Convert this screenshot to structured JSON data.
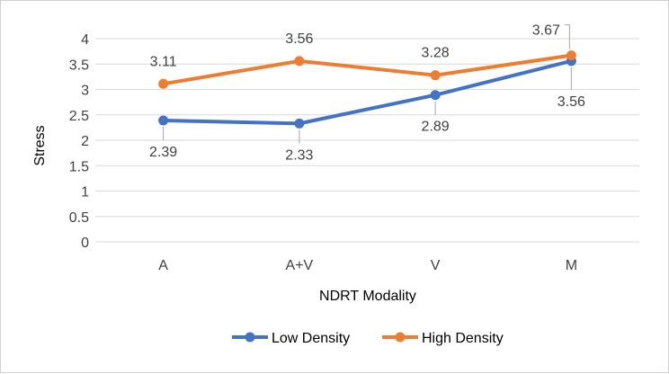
{
  "chart_data": {
    "type": "line",
    "title": "",
    "xlabel": "NDRT Modality",
    "ylabel": "Stress",
    "categories": [
      "A",
      "A+V",
      "V",
      "M"
    ],
    "ylim": [
      0,
      4
    ],
    "yticks": [
      0,
      0.5,
      1,
      1.5,
      2,
      2.5,
      3,
      3.5,
      4
    ],
    "ytick_labels": [
      "0",
      "0.5",
      "1",
      "1.5",
      "2",
      "2.5",
      "3",
      "3.5",
      "4"
    ],
    "grid": true,
    "legend_position": "bottom",
    "series": [
      {
        "name": "Low Density",
        "color": "#4472C4",
        "values": [
          2.39,
          2.33,
          2.89,
          3.56
        ],
        "labels": [
          "2.39",
          "2.33",
          "2.89",
          "3.56"
        ]
      },
      {
        "name": "High Density",
        "color": "#ED7D31",
        "values": [
          3.11,
          3.56,
          3.28,
          3.67
        ],
        "labels": [
          "3.11",
          "3.56",
          "3.28",
          "3.67"
        ]
      }
    ]
  }
}
